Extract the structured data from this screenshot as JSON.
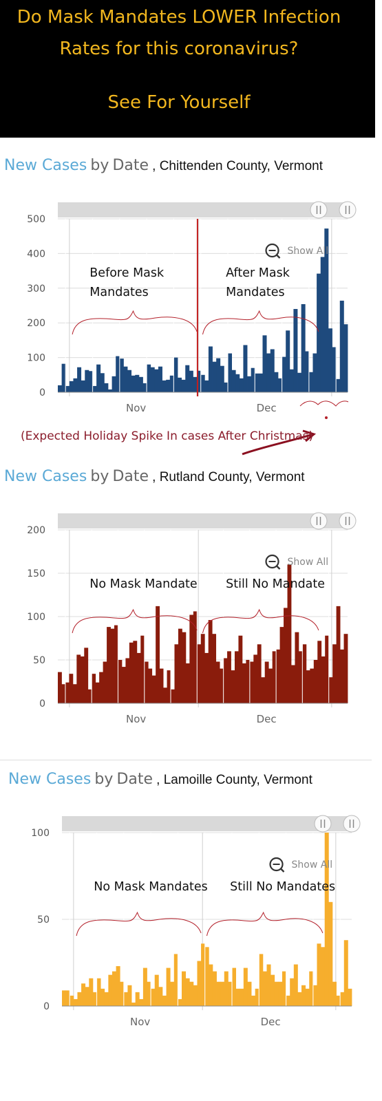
{
  "banner": {
    "line1": "Do Mask Mandates LOWER Infection",
    "line2": "Rates for this coronavirus?",
    "line3": "See For Yourself"
  },
  "chart_data": [
    {
      "type": "bar",
      "title": "New Cases by Date",
      "title_parts": [
        "New Cases",
        "by",
        "Date"
      ],
      "place": ", Chittenden County, Vermont",
      "xlabel": "",
      "ylabel": "",
      "x_ticks": [
        "Nov",
        "Dec"
      ],
      "y_ticks": [
        0,
        100,
        200,
        300,
        400,
        500
      ],
      "ylim": [
        0,
        500
      ],
      "grid": true,
      "legend": "none",
      "color": "#1e4a7d",
      "controls": {
        "zoom_label": "Show All"
      },
      "annotations": {
        "left": [
          "Before Mask",
          "Mandates"
        ],
        "right": [
          "After Mask",
          "Mandates"
        ],
        "mandate_line": true
      },
      "values": [
        20,
        82,
        18,
        32,
        40,
        72,
        34,
        64,
        61,
        18,
        80,
        55,
        26,
        8,
        46,
        104,
        97,
        74,
        64,
        48,
        50,
        44,
        26,
        80,
        72,
        66,
        74,
        34,
        36,
        48,
        100,
        42,
        36,
        78,
        62,
        44,
        62,
        50,
        34,
        132,
        88,
        98,
        76,
        28,
        112,
        64,
        52,
        40,
        136,
        46,
        70,
        54,
        54,
        164,
        112,
        124,
        58,
        40,
        102,
        178,
        66,
        240,
        56,
        254,
        118,
        58,
        112,
        342,
        390,
        472,
        184,
        130,
        38,
        264,
        196
      ]
    },
    {
      "type": "bar",
      "title": "New Cases by Date",
      "title_parts": [
        "New Cases",
        "by",
        "Date"
      ],
      "place": ", Rutland County, Vermont",
      "xlabel": "",
      "ylabel": "",
      "x_ticks": [
        "Nov",
        "Dec"
      ],
      "y_ticks": [
        0,
        50,
        100,
        150,
        200
      ],
      "ylim": [
        0,
        200
      ],
      "grid": true,
      "legend": "none",
      "color": "#8a1c0c",
      "controls": {
        "zoom_label": "Show All"
      },
      "annotations": {
        "left": [
          "No Mask Mandate"
        ],
        "right": [
          "Still No Mandate"
        ],
        "mandate_line": false
      },
      "values": [
        36,
        22,
        24,
        34,
        22,
        56,
        54,
        64,
        16,
        34,
        24,
        36,
        48,
        88,
        86,
        90,
        50,
        42,
        52,
        70,
        72,
        58,
        78,
        48,
        40,
        32,
        112,
        40,
        18,
        38,
        16,
        68,
        86,
        82,
        46,
        102,
        106,
        68,
        80,
        58,
        96,
        80,
        48,
        40,
        52,
        60,
        38,
        60,
        78,
        46,
        50,
        48,
        56,
        68,
        30,
        48,
        40,
        60,
        62,
        88,
        110,
        160,
        44,
        82,
        60,
        68,
        38,
        40,
        50,
        72,
        54,
        78,
        30,
        68,
        112,
        62,
        80
      ]
    },
    {
      "type": "bar",
      "title": "New Cases by Date",
      "title_parts": [
        "New Cases",
        "by",
        "Date"
      ],
      "place": ", Lamoille County, Vermont",
      "xlabel": "",
      "ylabel": "",
      "x_ticks": [
        "Nov",
        "Dec"
      ],
      "y_ticks": [
        0,
        50,
        100
      ],
      "ylim": [
        0,
        100
      ],
      "grid": true,
      "legend": "none",
      "color": "#f6ae2d",
      "controls": {
        "zoom_label": "Show All"
      },
      "annotations": {
        "left": [
          "No Mask Mandates"
        ],
        "right": [
          "Still No Mandates"
        ],
        "mandate_line": false
      },
      "values": [
        9,
        9,
        6,
        4,
        8,
        13,
        11,
        16,
        8,
        16,
        10,
        8,
        18,
        20,
        23,
        14,
        8,
        12,
        2,
        8,
        4,
        22,
        14,
        10,
        18,
        11,
        6,
        22,
        14,
        30,
        4,
        20,
        16,
        14,
        12,
        26,
        36,
        34,
        24,
        20,
        14,
        14,
        20,
        14,
        22,
        10,
        10,
        22,
        14,
        6,
        10,
        30,
        20,
        24,
        18,
        14,
        14,
        20,
        6,
        16,
        24,
        8,
        12,
        10,
        20,
        12,
        36,
        34,
        100,
        60,
        14,
        6,
        8,
        38,
        10
      ]
    }
  ],
  "annotation_text": "(Expected Holiday Spike In cases After Christmas)"
}
